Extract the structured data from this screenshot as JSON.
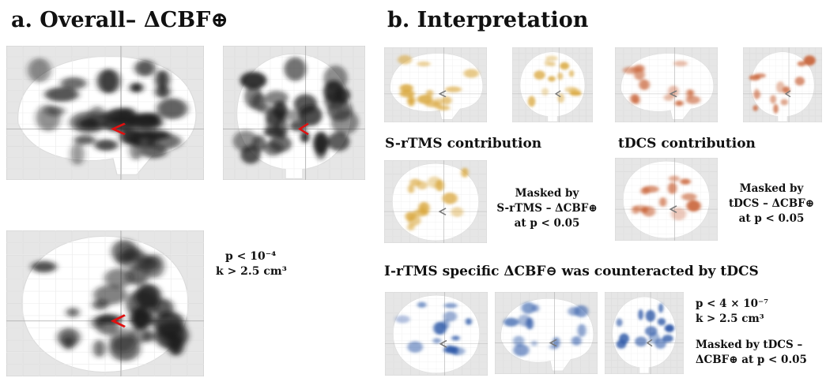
{
  "panel_a": {
    "title": "a. Overall– ΔCBF⊕",
    "threshold_line1": "p < 10⁻⁴",
    "threshold_line2": "k > 2.5 cm³"
  },
  "panel_b": {
    "title": "b. Interpretation",
    "srtms_heading": "S-rTMS contribution",
    "tdcs_heading": "tDCS contribution",
    "srtms_mask_line1": "Masked by",
    "srtms_mask_line2": "S-rTMS – ΔCBF⊕",
    "srtms_mask_line3": "at p < 0.05",
    "tdcs_mask_line1": "Masked by",
    "tdcs_mask_line2": "tDCS – ΔCBF⊕",
    "tdcs_mask_line3": "at p < 0.05",
    "irtms_heading": "I-rTMS specific ΔCBF⊖ was counteracted by tDCS",
    "irtms_threshold_line1": "p < 4 × 10⁻⁷",
    "irtms_threshold_line2": "k > 2.5 cm³",
    "irtms_mask_line1": "Masked by tDCS –",
    "irtms_mask_line2": "ΔCBF⊕ at p < 0.05"
  },
  "colors": {
    "overall_blob": "#1e1e1e",
    "srtms_blob": "#d9a63a",
    "tdcs_blob": "#c9653a",
    "irtms_blob": "#2f5aa8",
    "marker_red": "#e01010",
    "marker_grey": "#777777"
  }
}
